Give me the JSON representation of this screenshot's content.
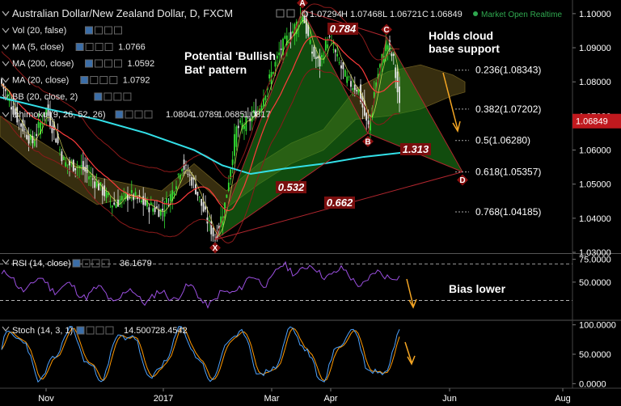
{
  "header": {
    "title": "Australian Dollar/New Zealand Dollar, D, FXCM",
    "ohlc": [
      {
        "k": "O",
        "v": "1.07294"
      },
      {
        "k": "H",
        "v": "1.07468"
      },
      {
        "k": "L",
        "v": "1.06721"
      },
      {
        "k": "C",
        "v": "1.06849"
      }
    ],
    "status": "Market Open Realtime",
    "status_color": "#2fa84f"
  },
  "indicators": [
    {
      "label": "Vol (20, false)",
      "value": "",
      "color": "#ffffff"
    },
    {
      "label": "MA (5, close)",
      "value": "1.0766",
      "color": "#ffff66"
    },
    {
      "label": "MA (200, close)",
      "value": "1.0592",
      "color": "#33e0e8"
    },
    {
      "label": "MA (20, close)",
      "value": "1.0792",
      "color": "#ff3b3b"
    },
    {
      "label": "BB (20, close, 2)",
      "value": "",
      "color": "#ffffff"
    }
  ],
  "ichimoku": {
    "label": "Ichimoku (9, 26, 52, 26)",
    "values": [
      {
        "v": "1.0804",
        "color": "#4da3ff"
      },
      {
        "v": "1.0789",
        "color": "#ff4444"
      },
      {
        "v": "1.0685",
        "color": "#66dd66"
      },
      {
        "v": "1.0817",
        "color": "#ff7777"
      }
    ]
  },
  "rsi": {
    "label": "RSI (14, close)",
    "value": "36.1679",
    "color": "#aa55ff"
  },
  "stoch": {
    "label": "Stoch (14, 3, 1)",
    "values": [
      {
        "v": "14.5007",
        "color": "#4da3ff"
      },
      {
        "v": "28.4542",
        "color": "#ff9900"
      }
    ]
  },
  "annotations": {
    "pattern": [
      "Potential 'Bullish",
      "Bat' pattern"
    ],
    "cloud": [
      "Holds cloud",
      "base support"
    ],
    "bias": "Bias lower"
  },
  "chart_data": [
    {
      "type": "candlestick",
      "panel": "price",
      "symbol": "AUDNZD",
      "timeframe": "D",
      "x_ticks": [
        "Nov",
        "2017",
        "Mar",
        "Apr",
        "Jun",
        "Aug"
      ],
      "ylim": [
        1.03,
        1.104
      ],
      "y_ticks": [
        "1.10000",
        "1.09000",
        "1.08000",
        "1.07000",
        "1.06000",
        "1.05000",
        "1.04000",
        "1.03000"
      ],
      "last_price": "1.06849",
      "series": [
        {
          "name": "MA (5, close)",
          "color": "#ffff66"
        },
        {
          "name": "MA (20, close)",
          "color": "#ff3b3b"
        },
        {
          "name": "MA (200, close)",
          "color": "#33e0e8"
        },
        {
          "name": "BB (20, close, 2)",
          "color": "#cc4444"
        }
      ],
      "harmonic": {
        "points": [
          {
            "name": "X",
            "price": 1.0337
          },
          {
            "name": "A",
            "price": 1.101
          },
          {
            "name": "B",
            "price": 1.0649
          },
          {
            "name": "C",
            "price": 1.0932
          },
          {
            "name": "D",
            "price": 1.0536
          }
        ],
        "ratios": [
          "0.784",
          "0.532",
          "1.313",
          "0.662"
        ]
      },
      "fib_levels": [
        {
          "label": "0.236(1.08343)",
          "price": 1.08343
        },
        {
          "label": "0.382(1.07202)",
          "price": 1.07202
        },
        {
          "label": "0.5(1.06280)",
          "price": 1.0628
        },
        {
          "label": "0.618(1.05357)",
          "price": 1.05357
        },
        {
          "label": "0.768(1.04185)",
          "price": 1.04185
        }
      ]
    },
    {
      "type": "line",
      "panel": "rsi",
      "name": "RSI (14, close)",
      "ylim": [
        10,
        80
      ],
      "y_ticks": [
        "75.0000",
        "50.0000"
      ],
      "levels": [
        70,
        30
      ],
      "last": 36.1679
    },
    {
      "type": "line",
      "panel": "stoch",
      "name": "Stoch (14, 3, 1)",
      "ylim": [
        -5,
        105
      ],
      "y_ticks": [
        "100.0000",
        "50.0000",
        "0.0000"
      ],
      "levels": [
        80,
        20
      ],
      "series": [
        {
          "name": "%K",
          "color": "#4da3ff",
          "last": 14.5007
        },
        {
          "name": "%D",
          "color": "#ff9900",
          "last": 28.4542
        }
      ]
    }
  ]
}
